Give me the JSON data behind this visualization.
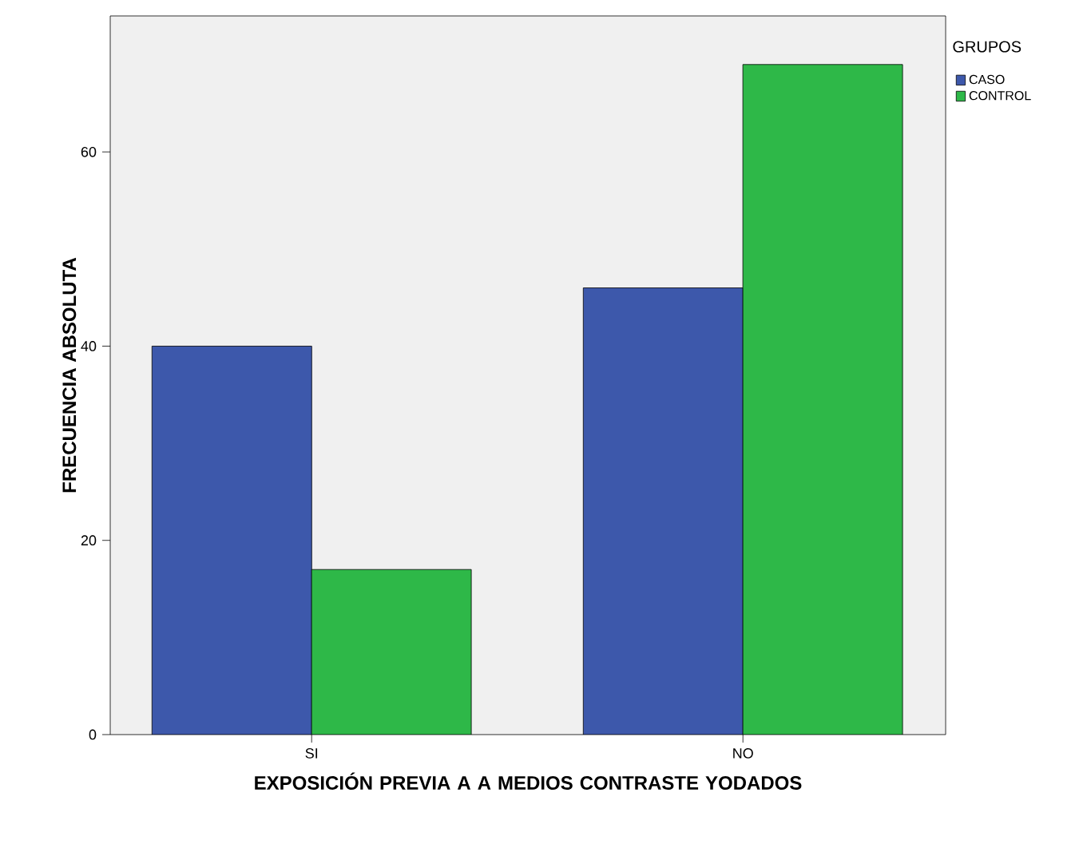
{
  "chart_data": {
    "type": "bar",
    "xlabel": "EXPOSICIÓN PREVIA A A MEDIOS CONTRASTE YODADOS",
    "ylabel": "FRECUENCIA ABSOLUTA",
    "legend_title": "GRUPOS",
    "categories": [
      "SI",
      "NO"
    ],
    "series": [
      {
        "name": "CASO",
        "color": "#3d58ab",
        "values": [
          40,
          46
        ]
      },
      {
        "name": "CONTROL",
        "color": "#2eb848",
        "values": [
          17,
          69
        ]
      }
    ],
    "ylim": [
      0,
      74
    ],
    "yticks": [
      0,
      20,
      40,
      60
    ],
    "grid": false,
    "legend": "right"
  }
}
